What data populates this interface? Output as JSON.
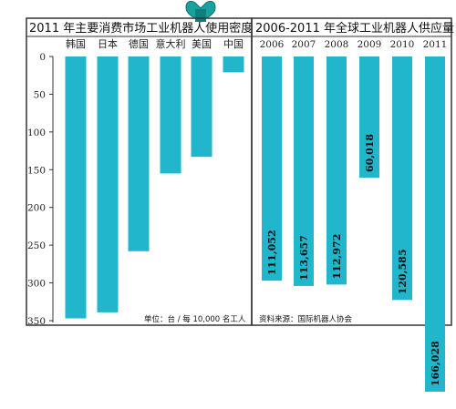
{
  "colors": {
    "bar": "#21b6cc",
    "frame": "#333333",
    "clip": "#17a2a0"
  },
  "chart_data": [
    {
      "type": "bar",
      "title": "2011 年主要消费市场工业机器人使用密度",
      "categories": [
        "韩国",
        "日本",
        "德国",
        "意大利",
        "美国",
        "中国"
      ],
      "values": [
        347,
        339,
        258,
        155,
        133,
        21
      ],
      "yticks": [
        "0",
        "50",
        "100",
        "150",
        "200",
        "250",
        "300",
        "350"
      ],
      "ylim": [
        0,
        350
      ],
      "orientation": "downward",
      "note": "单位：台 / 每 10,000 名工人",
      "grid": false
    },
    {
      "type": "bar",
      "title": "2006-2011 年全球工业机器人供应量",
      "categories": [
        "2006",
        "2007",
        "2008",
        "2009",
        "2010",
        "2011"
      ],
      "values": [
        111052,
        113657,
        112972,
        60018,
        120585,
        166028
      ],
      "value_labels": [
        "111,052",
        "113,657",
        "112,972",
        "60,018",
        "120,585",
        "166,028"
      ],
      "orientation": "downward",
      "note": "资料来源：国际机器人协会",
      "grid": false
    }
  ]
}
